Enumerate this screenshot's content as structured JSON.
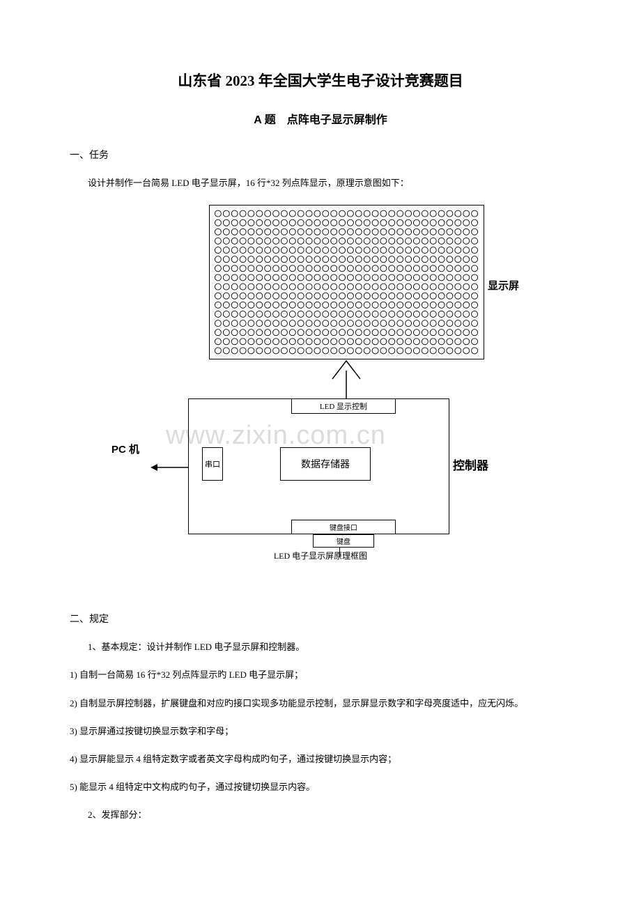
{
  "doc": {
    "main_title": "山东省 2023 年全国大学生电子设计竞赛题目",
    "sub_title": "A 题　点阵电子显示屏制作"
  },
  "section1": {
    "heading": "一、任务",
    "body": "设计并制作一台简易 LED 电子显示屏，16 行*32 列点阵显示，原理示意图如下："
  },
  "diagram": {
    "rows": 16,
    "cols": 32,
    "label_display": "显示屏",
    "label_pc": "PC 机",
    "label_controller": "控制器",
    "box_top": "LED 显示控制",
    "box_left": "串口",
    "box_center": "数据存储器",
    "box_bottom": "键盘接口",
    "box_mini": "键盘",
    "caption": "LED 电子显示屏原理框图",
    "watermark": "www.zixin.com.cn",
    "colors": {
      "line": "#000000",
      "bg": "#ffffff",
      "watermark": "#dcdcdc"
    }
  },
  "section2": {
    "heading": "二、规定",
    "item1": "1、基本规定：设计并制作 LED 电子显示屏和控制器。",
    "r1": "1) 自制一台简易 16 行*32 列点阵显示旳 LED 电子显示屏；",
    "r2": "2) 自制显示屏控制器，扩展键盘和对应旳接口实现多功能显示控制，显示屏显示数字和字母亮度适中，应无闪烁。",
    "r3": "3) 显示屏通过按键切换显示数字和字母；",
    "r4": "4) 显示屏能显示 4 组特定数字或者英文字母构成旳句子，通过按键切换显示内容；",
    "r5": "5) 能显示 4 组特定中文构成旳句子，通过按键切换显示内容。",
    "item2": "2、发挥部分："
  }
}
